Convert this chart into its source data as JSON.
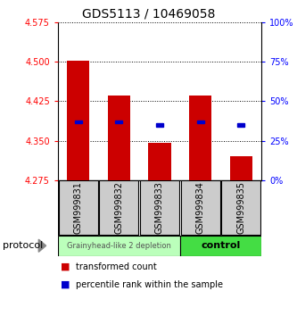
{
  "title": "GDS5113 / 10469058",
  "samples": [
    "GSM999831",
    "GSM999832",
    "GSM999833",
    "GSM999834",
    "GSM999835"
  ],
  "bar_bottoms": [
    4.275,
    4.275,
    4.275,
    4.275,
    4.275
  ],
  "bar_tops": [
    4.502,
    4.436,
    4.345,
    4.436,
    4.32
  ],
  "percentile_values": [
    37.0,
    37.0,
    35.0,
    37.0,
    35.0
  ],
  "ylim_left": [
    4.275,
    4.575
  ],
  "ylim_right": [
    0,
    100
  ],
  "yticks_left": [
    4.275,
    4.35,
    4.425,
    4.5,
    4.575
  ],
  "yticks_right": [
    0,
    25,
    50,
    75,
    100
  ],
  "bar_color": "#cc0000",
  "percentile_color": "#0000cc",
  "group1_label": "Grainyhead-like 2 depletion",
  "group1_color": "#bbffbb",
  "group2_label": "control",
  "group2_color": "#44dd44",
  "protocol_label": "protocol",
  "legend_tc": "transformed count",
  "legend_pr": "percentile rank within the sample",
  "bar_width": 0.55,
  "background_color": "#ffffff",
  "label_area_bg": "#cccccc"
}
